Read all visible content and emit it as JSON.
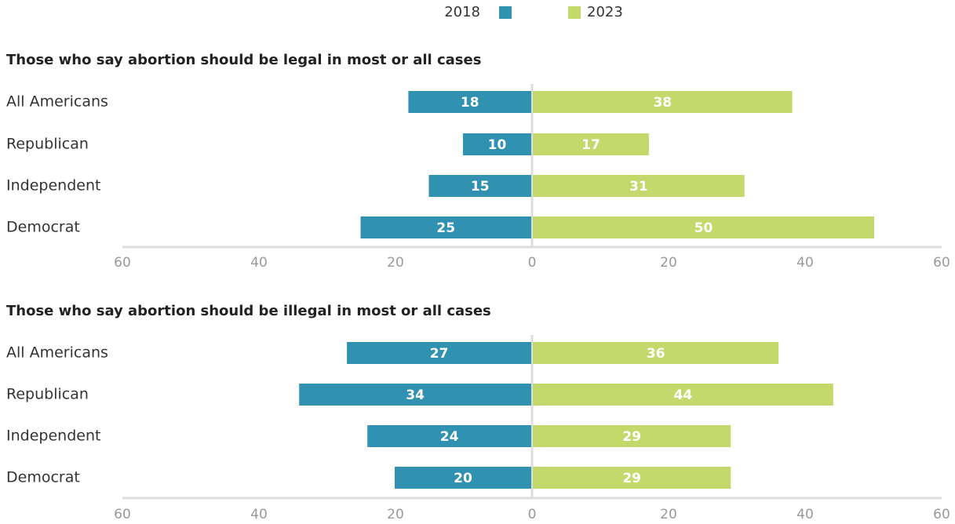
{
  "chart_data": [
    {
      "type": "diverging-bar",
      "title": "Those who say abortion should be legal in most or all cases",
      "categories": [
        "All Americans",
        "Republican",
        "Independent",
        "Democrat"
      ],
      "series": [
        {
          "name": "2018",
          "color": "#3191b1",
          "direction": "left",
          "values": [
            18,
            10,
            15,
            25
          ]
        },
        {
          "name": "2023",
          "color": "#c4d96b",
          "direction": "right",
          "values": [
            38,
            17,
            31,
            50
          ]
        }
      ],
      "xlim": [
        -60,
        60
      ],
      "xticks": [
        {
          "value": -60,
          "label": "60"
        },
        {
          "value": -40,
          "label": "40"
        },
        {
          "value": -20,
          "label": "20"
        },
        0,
        20,
        40,
        60
      ]
    },
    {
      "type": "diverging-bar",
      "title": "Those who say abortion should be illegal in most or all cases",
      "categories": [
        "All Americans",
        "Republican",
        "Independent",
        "Democrat"
      ],
      "series": [
        {
          "name": "2018",
          "color": "#3191b1",
          "direction": "left",
          "values": [
            27,
            34,
            24,
            20
          ]
        },
        {
          "name": "2023",
          "color": "#c4d96b",
          "direction": "right",
          "values": [
            36,
            44,
            29,
            29
          ]
        }
      ],
      "xlim": [
        -60,
        60
      ],
      "xticks": [
        {
          "value": -60,
          "label": "60"
        },
        {
          "value": -40,
          "label": "40"
        },
        {
          "value": -20,
          "label": "20"
        },
        0,
        20,
        40,
        60
      ]
    }
  ]
}
